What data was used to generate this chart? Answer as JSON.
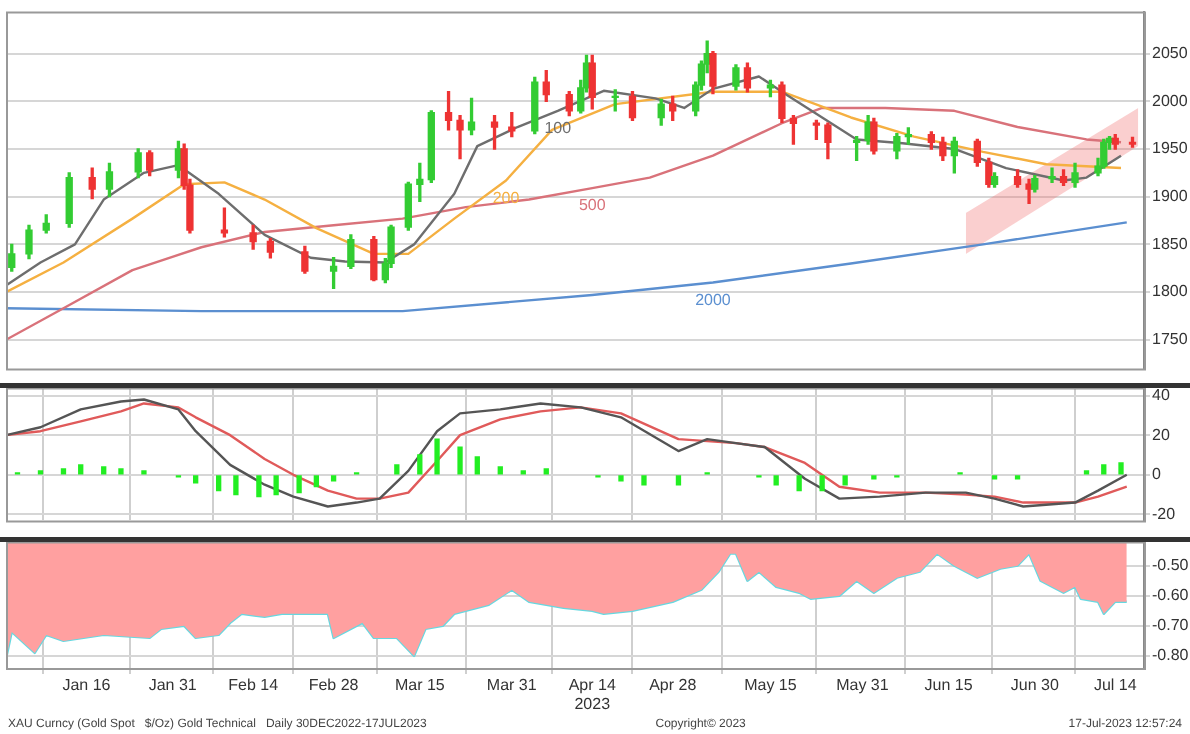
{
  "chart_data": [
    {
      "type": "candlestick",
      "xlim": [
        "2023-01-02",
        "2023-07-19"
      ],
      "ylim": [
        1720,
        2094
      ],
      "yticks": [
        1750,
        1800,
        1850,
        1900,
        1950,
        2000,
        2050
      ],
      "grid": "y",
      "tick_labels": "y",
      "x": [
        "2023-01-03",
        "2023-01-06",
        "2023-01-09",
        "2023-01-13",
        "2023-01-17",
        "2023-01-20",
        "2023-01-25",
        "2023-01-27",
        "2023-02-01",
        "2023-02-02",
        "2023-02-03",
        "2023-02-09",
        "2023-02-14",
        "2023-02-17",
        "2023-02-23",
        "2023-02-28",
        "2023-03-03",
        "2023-03-07",
        "2023-03-09",
        "2023-03-10",
        "2023-03-13",
        "2023-03-15",
        "2023-03-17",
        "2023-03-20",
        "2023-03-22",
        "2023-03-24",
        "2023-03-28",
        "2023-03-31",
        "2023-04-04",
        "2023-04-06",
        "2023-04-10",
        "2023-04-12",
        "2023-04-13",
        "2023-04-14",
        "2023-04-18",
        "2023-04-21",
        "2023-04-26",
        "2023-04-28",
        "2023-05-02",
        "2023-05-03",
        "2023-05-04",
        "2023-05-05",
        "2023-05-09",
        "2023-05-11",
        "2023-05-15",
        "2023-05-17",
        "2023-05-19",
        "2023-05-23",
        "2023-05-25",
        "2023-05-30",
        "2023-06-01",
        "2023-06-02",
        "2023-06-06",
        "2023-06-08",
        "2023-06-12",
        "2023-06-14",
        "2023-06-16",
        "2023-06-20",
        "2023-06-22",
        "2023-06-23",
        "2023-06-27",
        "2023-06-29",
        "2023-06-30",
        "2023-07-03",
        "2023-07-05",
        "2023-07-07",
        "2023-07-11",
        "2023-07-12",
        "2023-07-13",
        "2023-07-14",
        "2023-07-17"
      ],
      "ohlc": [
        [
          1826,
          1850,
          1822,
          1840
        ],
        [
          1840,
          1870,
          1835,
          1865
        ],
        [
          1865,
          1881,
          1862,
          1872
        ],
        [
          1872,
          1925,
          1868,
          1920
        ],
        [
          1920,
          1930,
          1898,
          1908
        ],
        [
          1908,
          1935,
          1900,
          1926
        ],
        [
          1926,
          1950,
          1920,
          1946
        ],
        [
          1946,
          1948,
          1922,
          1928
        ],
        [
          1928,
          1958,
          1920,
          1950
        ],
        [
          1950,
          1955,
          1908,
          1912
        ],
        [
          1912,
          1918,
          1862,
          1865
        ],
        [
          1865,
          1888,
          1858,
          1862
        ],
        [
          1862,
          1870,
          1845,
          1853
        ],
        [
          1853,
          1856,
          1836,
          1842
        ],
        [
          1842,
          1848,
          1820,
          1822
        ],
        [
          1822,
          1836,
          1804,
          1827
        ],
        [
          1827,
          1860,
          1825,
          1855
        ],
        [
          1855,
          1858,
          1812,
          1813
        ],
        [
          1813,
          1835,
          1810,
          1830
        ],
        [
          1830,
          1870,
          1826,
          1868
        ],
        [
          1868,
          1915,
          1865,
          1913
        ],
        [
          1913,
          1935,
          1895,
          1918
        ],
        [
          1918,
          1990,
          1915,
          1988
        ],
        [
          1988,
          2010,
          1970,
          1980
        ],
        [
          1980,
          1985,
          1940,
          1970
        ],
        [
          1970,
          2003,
          1965,
          1978
        ],
        [
          1978,
          1985,
          1950,
          1973
        ],
        [
          1973,
          1988,
          1963,
          1969
        ],
        [
          1969,
          2025,
          1966,
          2020
        ],
        [
          2020,
          2032,
          2000,
          2007
        ],
        [
          2007,
          2010,
          1985,
          1990
        ],
        [
          1990,
          2022,
          1988,
          2014
        ],
        [
          2014,
          2048,
          2010,
          2040
        ],
        [
          2040,
          2048,
          1992,
          2004
        ],
        [
          2004,
          2012,
          1990,
          2005
        ],
        [
          2005,
          2010,
          1980,
          1983
        ],
        [
          1983,
          2002,
          1975,
          1997
        ],
        [
          1997,
          2005,
          1980,
          1990
        ],
        [
          1990,
          2020,
          1985,
          2017
        ],
        [
          2017,
          2042,
          2012,
          2039
        ],
        [
          2039,
          2063,
          2030,
          2050
        ],
        [
          2050,
          2052,
          2008,
          2016
        ],
        [
          2016,
          2038,
          2012,
          2035
        ],
        [
          2035,
          2040,
          2010,
          2014
        ],
        [
          2014,
          2022,
          2005,
          2017
        ],
        [
          2017,
          2020,
          1978,
          1982
        ],
        [
          1982,
          1985,
          1955,
          1977
        ],
        [
          1977,
          1980,
          1960,
          1975
        ],
        [
          1975,
          1977,
          1940,
          1957
        ],
        [
          1957,
          1963,
          1938,
          1959
        ],
        [
          1959,
          1985,
          1955,
          1978
        ],
        [
          1978,
          1982,
          1945,
          1948
        ],
        [
          1948,
          1966,
          1940,
          1963
        ],
        [
          1963,
          1972,
          1955,
          1965
        ],
        [
          1965,
          1968,
          1950,
          1957
        ],
        [
          1957,
          1962,
          1938,
          1943
        ],
        [
          1943,
          1962,
          1925,
          1958
        ],
        [
          1958,
          1960,
          1932,
          1936
        ],
        [
          1936,
          1940,
          1910,
          1913
        ],
        [
          1913,
          1925,
          1910,
          1921
        ],
        [
          1921,
          1928,
          1910,
          1913
        ],
        [
          1913,
          1918,
          1893,
          1908
        ],
        [
          1908,
          1922,
          1905,
          1919
        ],
        [
          1919,
          1930,
          1915,
          1921
        ],
        [
          1921,
          1928,
          1912,
          1915
        ],
        [
          1915,
          1935,
          1910,
          1925
        ],
        [
          1925,
          1940,
          1922,
          1932
        ],
        [
          1932,
          1960,
          1930,
          1957
        ],
        [
          1957,
          1963,
          1950,
          1961
        ],
        [
          1961,
          1965,
          1950,
          1955
        ],
        [
          1957,
          1962,
          1952,
          1955
        ]
      ],
      "colors": [
        "#33cc33",
        "#33cc33",
        "#33cc33",
        "#33cc33",
        "#ee3333",
        "#33cc33",
        "#33cc33",
        "#ee3333",
        "#33cc33",
        "#ee3333",
        "#ee3333",
        "#ee3333",
        "#ee3333",
        "#ee3333",
        "#ee3333",
        "#33cc33",
        "#33cc33",
        "#ee3333",
        "#33cc33",
        "#33cc33",
        "#33cc33",
        "#33cc33",
        "#33cc33",
        "#ee3333",
        "#ee3333",
        "#33cc33",
        "#ee3333",
        "#ee3333",
        "#33cc33",
        "#ee3333",
        "#ee3333",
        "#33cc33",
        "#33cc33",
        "#ee3333",
        "#33cc33",
        "#ee3333",
        "#33cc33",
        "#ee3333",
        "#33cc33",
        "#33cc33",
        "#33cc33",
        "#ee3333",
        "#33cc33",
        "#ee3333",
        "#33cc33",
        "#ee3333",
        "#ee3333",
        "#ee3333",
        "#ee3333",
        "#33cc33",
        "#33cc33",
        "#ee3333",
        "#33cc33",
        "#33cc33",
        "#ee3333",
        "#ee3333",
        "#33cc33",
        "#ee3333",
        "#ee3333",
        "#33cc33",
        "#ee3333",
        "#ee3333",
        "#33cc33",
        "#33cc33",
        "#ee3333",
        "#33cc33",
        "#33cc33",
        "#33cc33",
        "#33cc33",
        "#ee3333",
        "#ee3333"
      ],
      "series": [
        {
          "type": "line",
          "name": "100",
          "color": "#6e6e6e",
          "x": [
            "2023-01-02",
            "2023-01-08",
            "2023-01-14",
            "2023-01-19",
            "2023-01-26",
            "2023-02-01",
            "2023-02-08",
            "2023-02-16",
            "2023-02-24",
            "2023-03-02",
            "2023-03-09",
            "2023-03-14",
            "2023-03-21",
            "2023-03-25",
            "2023-04-01",
            "2023-04-08",
            "2023-04-16",
            "2023-04-25",
            "2023-04-30",
            "2023-05-05",
            "2023-05-13",
            "2023-05-18",
            "2023-05-24",
            "2023-05-30",
            "2023-06-07",
            "2023-06-16",
            "2023-06-25",
            "2023-07-05",
            "2023-07-09",
            "2023-07-15"
          ],
          "values": [
            1807,
            1831,
            1850,
            1897,
            1925,
            1933,
            1903,
            1860,
            1836,
            1832,
            1831,
            1850,
            1903,
            1953,
            1973,
            1990,
            2011,
            2003,
            1993,
            2013,
            2026,
            2006,
            1983,
            1960,
            1956,
            1950,
            1930,
            1917,
            1920,
            1943
          ]
        },
        {
          "type": "line",
          "name": "200",
          "color": "#f5b041",
          "x": [
            "2023-01-02",
            "2023-01-12",
            "2023-01-24",
            "2023-02-02",
            "2023-02-09",
            "2023-02-16",
            "2023-02-25",
            "2023-03-07",
            "2023-03-13",
            "2023-03-21",
            "2023-03-30",
            "2023-04-07",
            "2023-04-18",
            "2023-05-05",
            "2023-05-17",
            "2023-05-29",
            "2023-06-09",
            "2023-06-21",
            "2023-07-02",
            "2023-07-15"
          ],
          "values": [
            1800,
            1831,
            1877,
            1913,
            1915,
            1897,
            1867,
            1840,
            1840,
            1877,
            1917,
            1970,
            1997,
            2010,
            2010,
            1983,
            1963,
            1947,
            1934,
            1930
          ]
        },
        {
          "type": "line",
          "name": "500",
          "color": "#d9727a",
          "x": [
            "2023-01-02",
            "2023-01-12",
            "2023-01-24",
            "2023-02-05",
            "2023-02-16",
            "2023-02-28",
            "2023-03-12",
            "2023-03-23",
            "2023-04-03",
            "2023-04-14",
            "2023-04-24",
            "2023-05-05",
            "2023-05-17",
            "2023-05-24",
            "2023-06-04",
            "2023-06-16",
            "2023-06-27",
            "2023-07-09",
            "2023-07-15"
          ],
          "values": [
            1750,
            1783,
            1823,
            1847,
            1863,
            1870,
            1877,
            1889,
            1897,
            1909,
            1920,
            1943,
            1977,
            1993,
            1993,
            1990,
            1973,
            1960,
            1957
          ]
        },
        {
          "type": "line",
          "name": "2000",
          "color": "#5b8fd0",
          "x": [
            "2023-01-02",
            "2023-02-05",
            "2023-03-12",
            "2023-04-14",
            "2023-05-05",
            "2023-05-29",
            "2023-06-21",
            "2023-07-16"
          ],
          "values": [
            1783,
            1780,
            1780,
            1797,
            1810,
            1830,
            1850,
            1873
          ]
        },
        {
          "type": "line",
          "color": "#f07070",
          "x": [
            "2023-06-18",
            "2023-07-18"
          ],
          "values": [
            null,
            null
          ],
          "lower": [
            1840,
            1953
          ],
          "upper": [
            1883,
            1993
          ]
        }
      ]
    },
    {
      "type": "line",
      "xlim": [
        "2023-01-02",
        "2023-07-19"
      ],
      "ylim": [
        -23,
        44
      ],
      "yticks": [
        40,
        20,
        0,
        {
          "value": -20,
          "label": "-20"
        }
      ],
      "grid": true,
      "tick_labels": "y",
      "xticks": [
        {
          "value": "2023-01-16",
          "label": null
        },
        {
          "value": "2023-01-31",
          "label": null
        },
        {
          "value": "2023-02-14",
          "label": null
        },
        {
          "value": "2023-02-28",
          "label": null
        },
        {
          "value": "2023-03-15",
          "label": null
        },
        {
          "value": "2023-03-31",
          "label": null
        },
        {
          "value": "2023-04-14",
          "label": null
        },
        {
          "value": "2023-04-28",
          "label": null
        },
        {
          "value": "2023-05-15",
          "label": null
        },
        {
          "value": "2023-05-31",
          "label": null
        },
        {
          "value": "2023-06-15",
          "label": null
        },
        {
          "value": "2023-06-30",
          "label": null
        },
        {
          "value": "2023-07-14",
          "label": null
        }
      ],
      "series": [
        {
          "type": "bar",
          "color": "#22ee22",
          "x": [
            "2023-01-04",
            "2023-01-08",
            "2023-01-12",
            "2023-01-15",
            "2023-01-19",
            "2023-01-22",
            "2023-01-26",
            "2023-02-01",
            "2023-02-04",
            "2023-02-08",
            "2023-02-11",
            "2023-02-15",
            "2023-02-18",
            "2023-02-22",
            "2023-02-25",
            "2023-02-28",
            "2023-03-04",
            "2023-03-11",
            "2023-03-15",
            "2023-03-18",
            "2023-03-22",
            "2023-03-25",
            "2023-03-29",
            "2023-04-02",
            "2023-04-06",
            "2023-04-15",
            "2023-04-19",
            "2023-04-23",
            "2023-04-29",
            "2023-05-04",
            "2023-05-13",
            "2023-05-16",
            "2023-05-20",
            "2023-05-24",
            "2023-05-28",
            "2023-06-02",
            "2023-06-06",
            "2023-06-17",
            "2023-06-23",
            "2023-06-27",
            "2023-07-09",
            "2023-07-12",
            "2023-07-15"
          ],
          "values": [
            1,
            2,
            3,
            5,
            4,
            3,
            2,
            -1,
            -4,
            -8,
            -10,
            -11,
            -10,
            -9,
            -6,
            -3,
            1,
            5,
            10,
            18,
            14,
            9,
            4,
            2,
            3,
            -1,
            -3,
            -5,
            -5,
            1,
            -1,
            -5,
            -8,
            -8,
            -5,
            -2,
            -1,
            1,
            -2,
            -2,
            2,
            5,
            6
          ]
        },
        {
          "type": "line",
          "color": "#555555",
          "x": [
            "2023-01-02",
            "2023-01-08",
            "2023-01-15",
            "2023-01-22",
            "2023-01-26",
            "2023-02-01",
            "2023-02-04",
            "2023-02-10",
            "2023-02-16",
            "2023-02-21",
            "2023-02-27",
            "2023-03-04",
            "2023-03-08",
            "2023-03-13",
            "2023-03-18",
            "2023-03-22",
            "2023-03-29",
            "2023-04-05",
            "2023-04-12",
            "2023-04-19",
            "2023-04-29",
            "2023-05-04",
            "2023-05-09",
            "2023-05-14",
            "2023-05-21",
            "2023-05-27",
            "2023-06-03",
            "2023-06-11",
            "2023-06-18",
            "2023-06-23",
            "2023-06-28",
            "2023-07-07",
            "2023-07-11",
            "2023-07-16"
          ],
          "values": [
            20,
            24,
            33,
            37,
            38,
            33,
            22,
            5,
            -5,
            -11,
            -16,
            -14,
            -12,
            2,
            22,
            31,
            33,
            36,
            34,
            29,
            12,
            18,
            16,
            14,
            -2,
            -12,
            -11,
            -9,
            -9,
            -12,
            -16,
            -14,
            -8,
            0
          ]
        },
        {
          "type": "line",
          "color": "#e05a5a",
          "x": [
            "2023-01-02",
            "2023-01-08",
            "2023-01-15",
            "2023-01-22",
            "2023-01-26",
            "2023-02-01",
            "2023-02-04",
            "2023-02-10",
            "2023-02-16",
            "2023-02-21",
            "2023-02-27",
            "2023-03-04",
            "2023-03-08",
            "2023-03-13",
            "2023-03-18",
            "2023-03-22",
            "2023-03-29",
            "2023-04-05",
            "2023-04-12",
            "2023-04-19",
            "2023-04-29",
            "2023-05-04",
            "2023-05-09",
            "2023-05-14",
            "2023-05-21",
            "2023-05-27",
            "2023-06-03",
            "2023-06-11",
            "2023-06-18",
            "2023-06-23",
            "2023-06-28",
            "2023-07-07",
            "2023-07-11",
            "2023-07-16"
          ],
          "values": [
            20,
            22,
            27,
            32,
            36,
            34,
            29,
            20,
            8,
            0,
            -8,
            -12,
            -12,
            -9,
            7,
            20,
            28,
            32,
            34,
            31,
            18,
            17,
            16,
            14,
            6,
            -6,
            -9,
            -9,
            -10,
            -11,
            -14,
            -14,
            -11,
            -6
          ]
        }
      ]
    },
    {
      "type": "area",
      "xlim": [
        "2023-01-02",
        "2023-07-19"
      ],
      "ylim": [
        -0.84,
        -0.42
      ],
      "yticks": [
        {
          "value": -0.5,
          "label": "-0.50"
        },
        {
          "value": -0.6,
          "label": "-0.60"
        },
        {
          "value": -0.7,
          "label": "-0.70"
        },
        {
          "value": -0.8,
          "label": "-0.80"
        }
      ],
      "grid": true,
      "xticks": [
        {
          "value": "2023-01-16",
          "label": "Jan 16"
        },
        {
          "value": "2023-01-31",
          "label": "Jan 31"
        },
        {
          "value": "2023-02-14",
          "label": "Feb 14"
        },
        {
          "value": "2023-02-28",
          "label": "Feb 28"
        },
        {
          "value": "2023-03-15",
          "label": "Mar 15"
        },
        {
          "value": "2023-03-31",
          "label": "Mar 31"
        },
        {
          "value": "2023-04-14",
          "label": "Apr 14\n2023"
        },
        {
          "value": "2023-04-28",
          "label": "Apr 28"
        },
        {
          "value": "2023-05-15",
          "label": "May 15"
        },
        {
          "value": "2023-05-31",
          "label": "May 31"
        },
        {
          "value": "2023-06-15",
          "label": "Jun 15"
        },
        {
          "value": "2023-06-30",
          "label": "Jun 30"
        },
        {
          "value": "2023-07-14",
          "label": "Jul 14"
        }
      ],
      "series": [
        {
          "type": "area",
          "color": "#ffa0a0",
          "x": [
            "2023-01-02",
            "2023-01-03",
            "2023-01-07",
            "2023-01-09",
            "2023-01-12",
            "2023-01-19",
            "2023-01-27",
            "2023-01-29",
            "2023-02-02",
            "2023-02-04",
            "2023-02-08",
            "2023-02-10",
            "2023-02-12",
            "2023-02-16",
            "2023-02-19",
            "2023-02-27",
            "2023-02-28",
            "2023-03-05",
            "2023-03-07",
            "2023-03-11",
            "2023-03-14",
            "2023-03-16",
            "2023-03-19",
            "2023-03-21",
            "2023-03-27",
            "2023-03-31",
            "2023-04-03",
            "2023-04-09",
            "2023-04-14",
            "2023-04-16",
            "2023-04-21",
            "2023-04-28",
            "2023-05-03",
            "2023-05-06",
            "2023-05-08",
            "2023-05-09",
            "2023-05-11",
            "2023-05-13",
            "2023-05-16",
            "2023-05-20",
            "2023-05-22",
            "2023-05-27",
            "2023-05-30",
            "2023-06-02",
            "2023-06-06",
            "2023-06-10",
            "2023-06-13",
            "2023-06-16",
            "2023-06-20",
            "2023-06-24",
            "2023-06-27",
            "2023-06-29",
            "2023-07-01",
            "2023-07-05",
            "2023-07-07",
            "2023-07-08",
            "2023-07-11",
            "2023-07-12",
            "2023-07-14",
            "2023-07-16"
          ],
          "values": [
            -0.81,
            -0.72,
            -0.79,
            -0.73,
            -0.75,
            -0.73,
            -0.74,
            -0.71,
            -0.7,
            -0.74,
            -0.73,
            -0.69,
            -0.66,
            -0.67,
            -0.66,
            -0.66,
            -0.74,
            -0.69,
            -0.74,
            -0.74,
            -0.8,
            -0.71,
            -0.7,
            -0.66,
            -0.63,
            -0.58,
            -0.62,
            -0.64,
            -0.65,
            -0.66,
            -0.65,
            -0.62,
            -0.58,
            -0.52,
            -0.46,
            -0.46,
            -0.55,
            -0.52,
            -0.57,
            -0.59,
            -0.61,
            -0.6,
            -0.55,
            -0.59,
            -0.54,
            -0.52,
            -0.46,
            -0.5,
            -0.54,
            -0.51,
            -0.5,
            -0.46,
            -0.55,
            -0.59,
            -0.57,
            -0.61,
            -0.62,
            -0.66,
            -0.62,
            -0.62
          ]
        },
        {
          "type": "line",
          "color": "#66d8e0",
          "x": [
            "2023-01-02",
            "2023-01-03",
            "2023-01-07",
            "2023-01-09",
            "2023-01-12",
            "2023-01-19",
            "2023-01-27",
            "2023-01-29",
            "2023-02-02",
            "2023-02-04",
            "2023-02-08",
            "2023-02-10",
            "2023-02-12",
            "2023-02-16",
            "2023-02-19",
            "2023-02-27",
            "2023-02-28",
            "2023-03-05",
            "2023-03-07",
            "2023-03-11",
            "2023-03-14",
            "2023-03-16",
            "2023-03-19",
            "2023-03-21",
            "2023-03-27",
            "2023-03-31",
            "2023-04-03",
            "2023-04-09",
            "2023-04-14",
            "2023-04-16",
            "2023-04-21",
            "2023-04-28",
            "2023-05-03",
            "2023-05-06",
            "2023-05-08",
            "2023-05-09",
            "2023-05-11",
            "2023-05-13",
            "2023-05-16",
            "2023-05-20",
            "2023-05-22",
            "2023-05-27",
            "2023-05-30",
            "2023-06-02",
            "2023-06-06",
            "2023-06-10",
            "2023-06-13",
            "2023-06-16",
            "2023-06-20",
            "2023-06-24",
            "2023-06-27",
            "2023-06-29",
            "2023-07-01",
            "2023-07-05",
            "2023-07-07",
            "2023-07-08",
            "2023-07-11",
            "2023-07-12",
            "2023-07-14",
            "2023-07-16"
          ],
          "values": [
            -0.81,
            -0.72,
            -0.79,
            -0.73,
            -0.75,
            -0.73,
            -0.74,
            -0.71,
            -0.7,
            -0.74,
            -0.73,
            -0.69,
            -0.66,
            -0.67,
            -0.66,
            -0.66,
            -0.74,
            -0.69,
            -0.74,
            -0.74,
            -0.8,
            -0.71,
            -0.7,
            -0.66,
            -0.63,
            -0.58,
            -0.62,
            -0.64,
            -0.65,
            -0.66,
            -0.65,
            -0.62,
            -0.58,
            -0.52,
            -0.46,
            -0.46,
            -0.55,
            -0.52,
            -0.57,
            -0.59,
            -0.61,
            -0.6,
            -0.55,
            -0.59,
            -0.54,
            -0.52,
            -0.46,
            -0.5,
            -0.54,
            -0.51,
            -0.5,
            -0.46,
            -0.55,
            -0.59,
            -0.57,
            -0.61,
            -0.62,
            -0.66,
            -0.62,
            -0.62
          ]
        }
      ],
      "annotations": [
        "XAU Curncy (Gold Spot   $/Oz) Gold Technical   Daily 30DEC2022-17JUL2023",
        "Copyright© 2023",
        "17-Jul-2023 12:57:24"
      ]
    }
  ]
}
